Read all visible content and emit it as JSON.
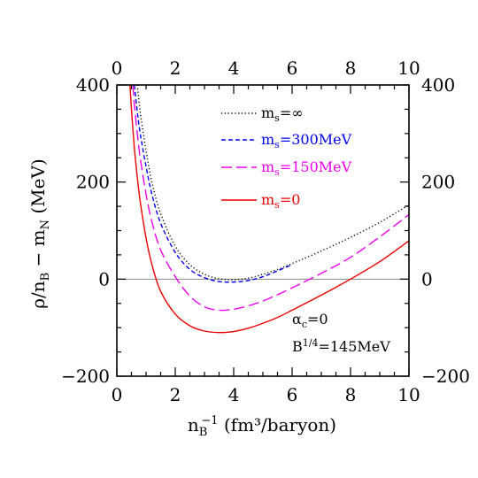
{
  "chart_data": {
    "type": "line",
    "title": "",
    "xlabel": {
      "main": "n",
      "sub": "B",
      "sup": "−1",
      "rest": " (fm³/baryon)"
    },
    "ylabel": {
      "p1": "ρ/n",
      "sub1": "B",
      "p2": " − m",
      "sub2": "N",
      "p3": " (MeV)"
    },
    "xlim": [
      0,
      10
    ],
    "ylim": [
      -200,
      400
    ],
    "x_ticks": [
      0,
      2,
      4,
      6,
      8,
      10
    ],
    "x_tick_labels": [
      "0",
      "2",
      "4",
      "6",
      "8",
      "10"
    ],
    "y_ticks": [
      -200,
      0,
      200,
      400
    ],
    "y_tick_labels": [
      "−200",
      "0",
      "200",
      "400"
    ],
    "zero_line": true,
    "grid": false,
    "legend_position": "top-right",
    "series": [
      {
        "name": "m_s=∞",
        "label": {
          "base": "m",
          "sub": "s",
          "rest": "=∞"
        },
        "color": "#000000",
        "style": "dotted",
        "x": [
          0.7,
          0.8,
          1.0,
          1.2,
          1.5,
          2.0,
          2.5,
          3.0,
          3.5,
          4.0,
          4.5,
          5.0,
          5.5,
          6.0,
          7.0,
          8.0,
          9.0,
          10.0
        ],
        "y": [
          400,
          345,
          265,
          200,
          135,
          68,
          30,
          10,
          1,
          -1,
          2,
          10,
          20,
          32,
          58,
          86,
          117,
          153
        ]
      },
      {
        "name": "m_s=300MeV",
        "label": {
          "base": "m",
          "sub": "s",
          "rest": "=300MeV"
        },
        "color": "#0000ee",
        "style": "dashed",
        "x": [
          0.6,
          0.7,
          0.8,
          1.0,
          1.2,
          1.5,
          2.0,
          2.5,
          3.0,
          3.5,
          4.0,
          4.5,
          5.0,
          5.5,
          6.0
        ],
        "y": [
          400,
          345,
          300,
          232,
          175,
          115,
          55,
          20,
          3,
          -5,
          -6,
          -3,
          5,
          17,
          30
        ]
      },
      {
        "name": "m_s=150MeV",
        "label": {
          "base": "m",
          "sub": "s",
          "rest": "=150MeV"
        },
        "color": "#ee00ee",
        "style": "longdash",
        "x": [
          0.55,
          0.6,
          0.7,
          0.8,
          1.0,
          1.2,
          1.5,
          2.0,
          2.5,
          3.0,
          3.5,
          4.0,
          4.5,
          5.0,
          5.5,
          6.0,
          7.0,
          8.0,
          9.0,
          10.0
        ],
        "y": [
          400,
          360,
          300,
          250,
          175,
          118,
          60,
          5,
          -35,
          -57,
          -64,
          -62,
          -55,
          -45,
          -32,
          -18,
          12,
          45,
          87,
          133
        ]
      },
      {
        "name": "m_s=0",
        "label": {
          "base": "m",
          "sub": "s",
          "rest": "=0"
        },
        "color": "#ee0000",
        "style": "solid",
        "x": [
          0.45,
          0.5,
          0.6,
          0.7,
          0.8,
          1.0,
          1.2,
          1.5,
          2.0,
          2.5,
          3.0,
          3.5,
          4.0,
          4.5,
          5.0,
          5.5,
          6.0,
          7.0,
          8.0,
          9.0,
          10.0
        ],
        "y": [
          400,
          350,
          270,
          210,
          160,
          85,
          30,
          -25,
          -72,
          -96,
          -107,
          -110,
          -108,
          -101,
          -91,
          -79,
          -64,
          -33,
          0,
          36,
          79
        ]
      }
    ],
    "annotations": [
      {
        "id": "alpha",
        "base": "α",
        "sub": "c",
        "rest": "=0"
      },
      {
        "id": "bag",
        "base": "B",
        "sup": "1/4",
        "rest": "=145MeV"
      }
    ]
  }
}
